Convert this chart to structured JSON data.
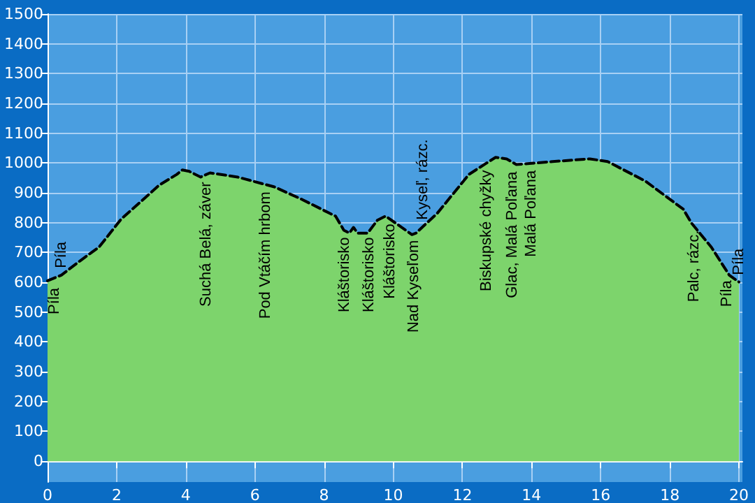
{
  "chart_data": {
    "type": "area",
    "line_style": "dashed",
    "grid": true,
    "x": [
      0,
      0.4,
      0.93,
      1.49,
      2.13,
      2.82,
      3.22,
      3.74,
      3.9,
      4.1,
      4.43,
      4.7,
      5.5,
      6.3,
      6.56,
      7.36,
      8.17,
      8.33,
      8.57,
      8.73,
      8.85,
      8.97,
      9.26,
      9.54,
      9.78,
      10.54,
      10.66,
      10.85,
      11.27,
      12.19,
      12.7,
      12.96,
      13.28,
      13.56,
      14.0,
      14.61,
      15.69,
      16.2,
      17.3,
      18.39,
      18.63,
      19.2,
      19.72,
      20
    ],
    "series": [
      {
        "color": "#7dd46c",
        "values": [
          605,
          624,
          671,
          718,
          812,
          883,
          925,
          962,
          977,
          972,
          953,
          967,
          953,
          928,
          920,
          878,
          831,
          822,
          775,
          765,
          784,
          765,
          765,
          808,
          822,
          760,
          765,
          786,
          831,
          962,
          1000,
          1019,
          1014,
          995,
          999,
          1005,
          1014,
          1005,
          939,
          845,
          798,
          718,
          624,
          601
        ]
      }
    ],
    "xlim": [
      0,
      20.1
    ],
    "xticks": [
      0,
      2,
      4,
      6,
      8,
      10,
      12,
      14,
      16,
      18,
      20
    ],
    "ylim": [
      -70,
      1500
    ],
    "yticks": [
      0,
      100,
      200,
      300,
      400,
      500,
      600,
      700,
      800,
      900,
      1000,
      1100,
      1200,
      1300,
      1400,
      1500
    ],
    "annotations": [
      {
        "text": "Píla",
        "x": 0.2,
        "y": 605
      },
      {
        "text": "Píla",
        "x": 0.4,
        "y": 624
      },
      {
        "text": "Suchá Belá, záver",
        "x": 4.6,
        "y": 960
      },
      {
        "text": "Pod Vtáčím hrbom",
        "x": 6.3,
        "y": 928
      },
      {
        "text": "Kláštorisko",
        "x": 8.6,
        "y": 775
      },
      {
        "text": "Kláštorisko",
        "x": 9.3,
        "y": 775
      },
      {
        "text": "Kláštorisko",
        "x": 9.9,
        "y": 820
      },
      {
        "text": "Nad Kyseľom",
        "x": 10.6,
        "y": 765
      },
      {
        "text": "Kyseľ, rázc.",
        "x": 10.85,
        "y": 786
      },
      {
        "text": "Biskupské chyžky",
        "x": 12.7,
        "y": 1000
      },
      {
        "text": "Glac, Malá Poľana",
        "x": 13.45,
        "y": 995
      },
      {
        "text": "Malá Poľana",
        "x": 14.0,
        "y": 999
      },
      {
        "text": "Palc, rázc.",
        "x": 18.7,
        "y": 798
      },
      {
        "text": "Píla",
        "x": 19.65,
        "y": 630
      },
      {
        "text": "Píla",
        "x": 20.0,
        "y": 601
      }
    ]
  }
}
